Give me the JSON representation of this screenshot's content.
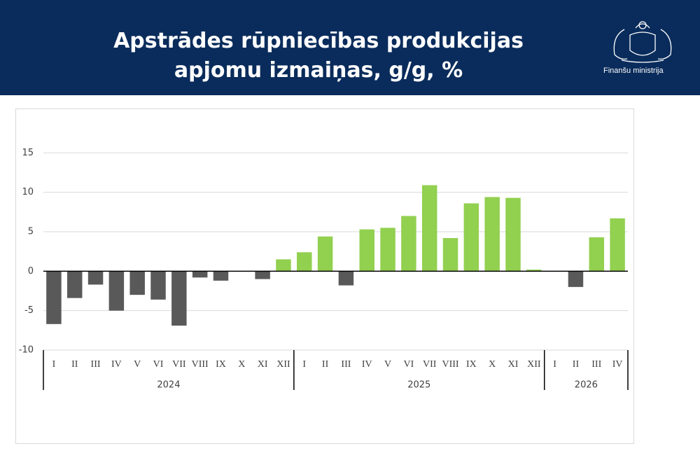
{
  "header": {
    "title_lines": [
      "Apstrādes rūpniecības produkcijas",
      "apjomu izmaiņas, g/g, %"
    ],
    "logo_text": "Finanšu ministrija"
  },
  "chart_data": {
    "type": "bar",
    "categories": [
      "I",
      "II",
      "III",
      "IV",
      "V",
      "VI",
      "VII",
      "VIII",
      "IX",
      "X",
      "XI",
      "XII",
      "I",
      "II",
      "III",
      "IV",
      "V",
      "VI",
      "VII",
      "VIII",
      "IX",
      "X",
      "XI",
      "XII",
      "I",
      "II",
      "III",
      "IV"
    ],
    "groups": [
      {
        "label": "2024",
        "count": 12
      },
      {
        "label": "2025",
        "count": 12
      },
      {
        "label": "2026",
        "count": 4
      }
    ],
    "values": [
      -6.7,
      -3.4,
      -1.7,
      -5.0,
      -3.0,
      -3.6,
      -6.9,
      -0.8,
      -1.2,
      0,
      -1.0,
      1.5,
      2.4,
      4.4,
      -1.8,
      5.3,
      5.5,
      7.0,
      10.9,
      4.2,
      8.6,
      9.4,
      9.3,
      0.2,
      0,
      -2.0,
      4.3,
      6.7
    ],
    "color_positive": "#92d050",
    "color_negative": "#595959",
    "ylim": [
      -10,
      20
    ],
    "yticks": [
      -10,
      -5,
      0,
      5,
      10,
      15
    ],
    "grid": true
  }
}
